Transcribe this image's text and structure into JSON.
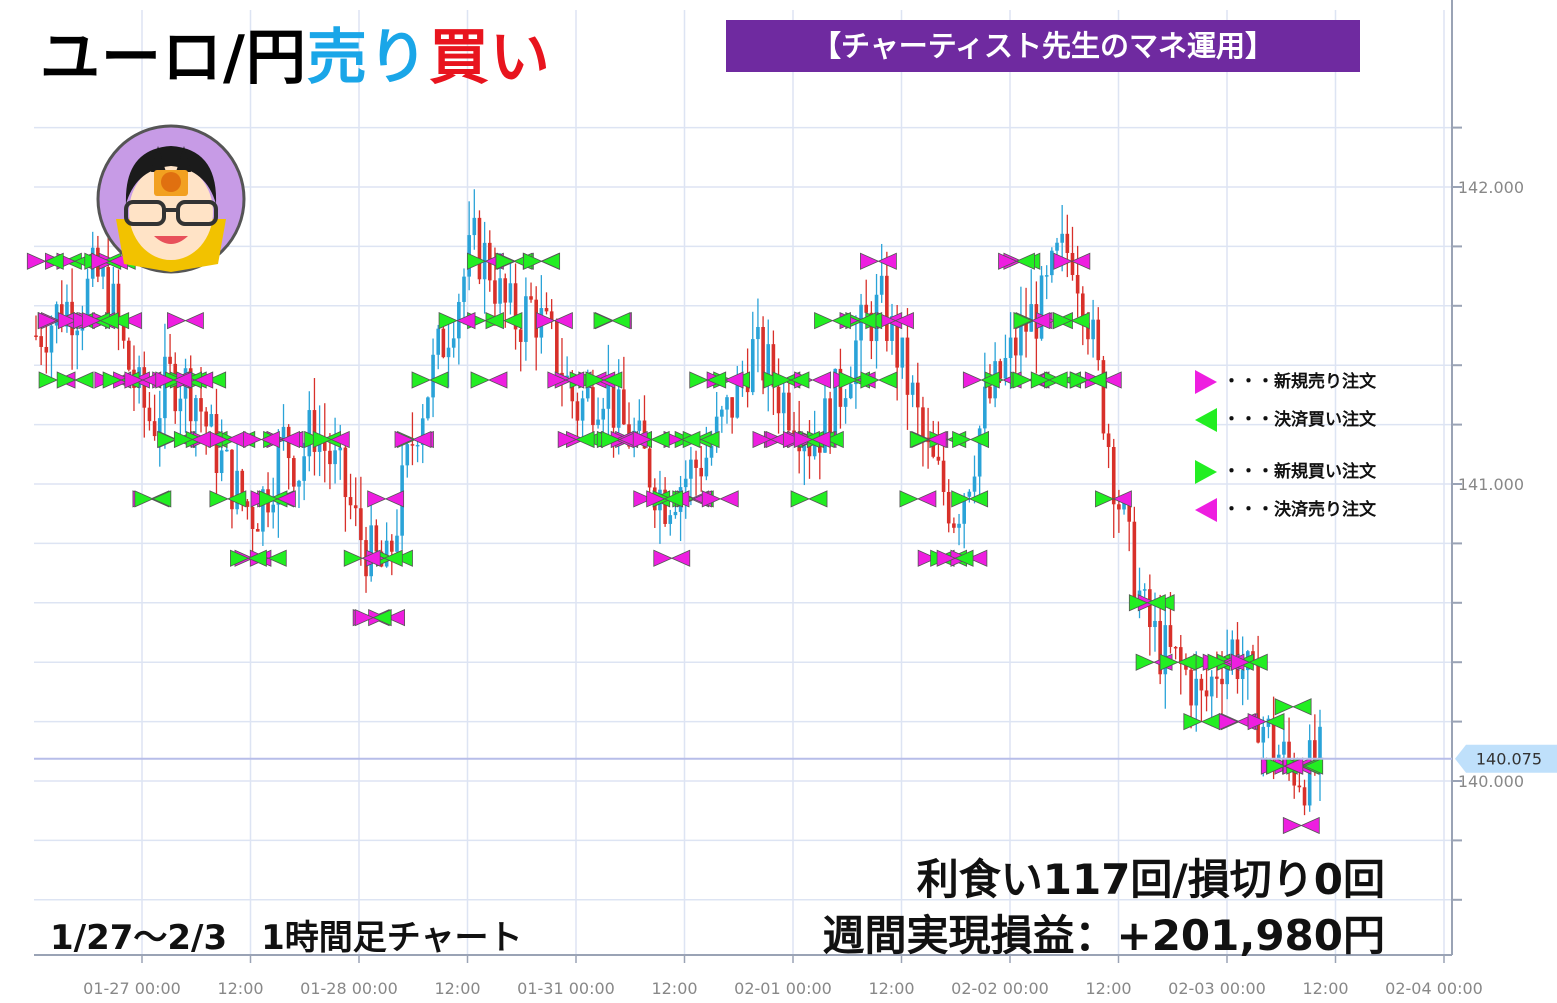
{
  "title": {
    "part1": "ユーロ/円",
    "part2": "売り",
    "part3": "買い",
    "colors": {
      "part1": "#000000",
      "part2": "#1aa6e8",
      "part3": "#e8141e"
    }
  },
  "banner": {
    "text": "【チャーティスト先生のマネ運用】",
    "color": "#6f2aa0"
  },
  "legend": [
    {
      "label": "・・・新規売り注文",
      "icon": "triangle-right-icon",
      "color": "#ee1ee0"
    },
    {
      "label": "・・・決済買い注文",
      "icon": "triangle-left-icon",
      "color": "#22ee22"
    },
    {
      "label": "・・・新規買い注文",
      "icon": "triangle-right-icon",
      "color": "#22ee22"
    },
    {
      "label": "・・・決済売り注文",
      "icon": "triangle-left-icon",
      "color": "#ee1ee0"
    }
  ],
  "stats": {
    "line1": "利食い117回/損切り0回",
    "line2": "週間実現損益：+201,980円"
  },
  "period_label": "1/27～2/3　1時間足チャート",
  "chart_data": {
    "type": "candlestick",
    "ylim": [
      139.25,
      142.1
    ],
    "yticks": [
      140.0,
      141.0,
      142.0
    ],
    "ytick_labels": [
      "140.000",
      "141.000",
      "142.000"
    ],
    "current_price": 140.075,
    "current_price_label": "140.075",
    "x_axis_labels": [
      "01-27 00:00",
      "12:00",
      "01-28 00:00",
      "12:00",
      "01-31 00:00",
      "12:00",
      "02-01 00:00",
      "12:00",
      "02-02 00:00",
      "12:00",
      "02-03 00:00",
      "12:00",
      "02-04 00:00"
    ],
    "close_path": [
      141.5,
      141.55,
      141.6,
      141.6,
      141.7,
      141.65,
      141.45,
      141.3,
      141.2,
      141.35,
      141.35,
      141.3,
      141.15,
      141.05,
      140.95,
      140.9,
      141.0,
      141.15,
      141.05,
      141.2,
      141.1,
      141.0,
      140.85,
      140.75,
      140.7,
      140.95,
      141.2,
      141.35,
      141.5,
      141.65,
      141.8,
      141.75,
      141.6,
      141.55,
      141.6,
      141.5,
      141.4,
      141.25,
      141.3,
      141.35,
      141.2,
      141.15,
      141.05,
      140.95,
      141.0,
      141.05,
      141.1,
      141.2,
      141.3,
      141.45,
      141.4,
      141.3,
      141.25,
      141.15,
      141.2,
      141.3,
      141.45,
      141.55,
      141.6,
      141.45,
      141.3,
      141.1,
      141.0,
      140.9,
      141.05,
      141.25,
      141.35,
      141.45,
      141.55,
      141.6,
      141.75,
      141.8,
      141.6,
      141.3,
      141.0,
      140.75,
      140.55,
      140.45,
      140.4,
      140.35,
      140.25,
      140.4,
      140.45,
      140.35,
      140.2,
      140.1,
      140.05,
      140.02,
      140.075
    ],
    "marker_rows": [
      141.55,
      141.35,
      141.15,
      140.95,
      140.77,
      140.6,
      140.4,
      140.2,
      140.05
    ]
  }
}
